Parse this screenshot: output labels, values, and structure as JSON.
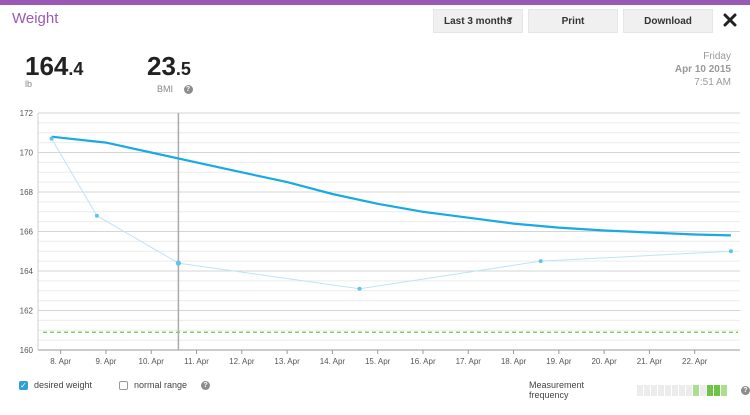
{
  "app": {
    "title": "Weight",
    "accent_color": "#9b59b6",
    "title_color": "#9b59b6"
  },
  "toolbar": {
    "range_label": "Last 3 months",
    "print_label": "Print",
    "download_label": "Download",
    "close_icon": "close-icon"
  },
  "stats": {
    "weight_int": "164",
    "weight_dec": ".4",
    "weight_unit": "lb",
    "bmi_int": "23",
    "bmi_dec": ".5",
    "bmi_label": "BMI"
  },
  "datetime": {
    "weekday": "Friday",
    "date": "Apr 10 2015",
    "time": "7:51 AM"
  },
  "chart_data": {
    "type": "line",
    "x": [
      "8. Apr",
      "9. Apr",
      "10. Apr",
      "11. Apr",
      "12. Apr",
      "13. Apr",
      "14. Apr",
      "15. Apr",
      "16. Apr",
      "17. Apr",
      "18. Apr",
      "19. Apr",
      "20. Apr",
      "21. Apr",
      "22. Apr"
    ],
    "ylim": [
      160,
      172
    ],
    "yticks": [
      160,
      162,
      164,
      166,
      168,
      170,
      172
    ],
    "grid": true,
    "series": [
      {
        "kind": "trend",
        "color": "#19aae3",
        "points": [
          [
            7.8,
            170.8
          ],
          [
            9,
            170.5
          ],
          [
            10,
            170.0
          ],
          [
            11,
            169.5
          ],
          [
            12,
            169.0
          ],
          [
            13,
            168.5
          ],
          [
            14,
            167.9
          ],
          [
            15,
            167.4
          ],
          [
            16,
            167.0
          ],
          [
            17,
            166.7
          ],
          [
            18,
            166.4
          ],
          [
            19,
            166.2
          ],
          [
            20,
            166.05
          ],
          [
            21,
            165.95
          ],
          [
            22,
            165.85
          ],
          [
            22.8,
            165.8
          ]
        ]
      },
      {
        "kind": "measurements",
        "color": "#bfe3f3",
        "point_color": "#5bc6ec",
        "points": [
          [
            7.8,
            170.7
          ],
          [
            8.8,
            166.8
          ],
          [
            10.6,
            164.4
          ],
          [
            14.6,
            163.1
          ],
          [
            18.6,
            164.5
          ],
          [
            22.8,
            165.0
          ]
        ]
      }
    ],
    "desired_weight": 160.9,
    "desired_color": "#6cc644",
    "selected_x": 10.6
  },
  "footer": {
    "desired_label": "desired weight",
    "normal_label": "normal range",
    "freq_label": "Measurement frequency",
    "freq_levels": [
      0,
      0,
      0,
      0,
      0,
      0,
      0,
      0,
      1,
      0,
      2,
      2,
      1
    ]
  }
}
